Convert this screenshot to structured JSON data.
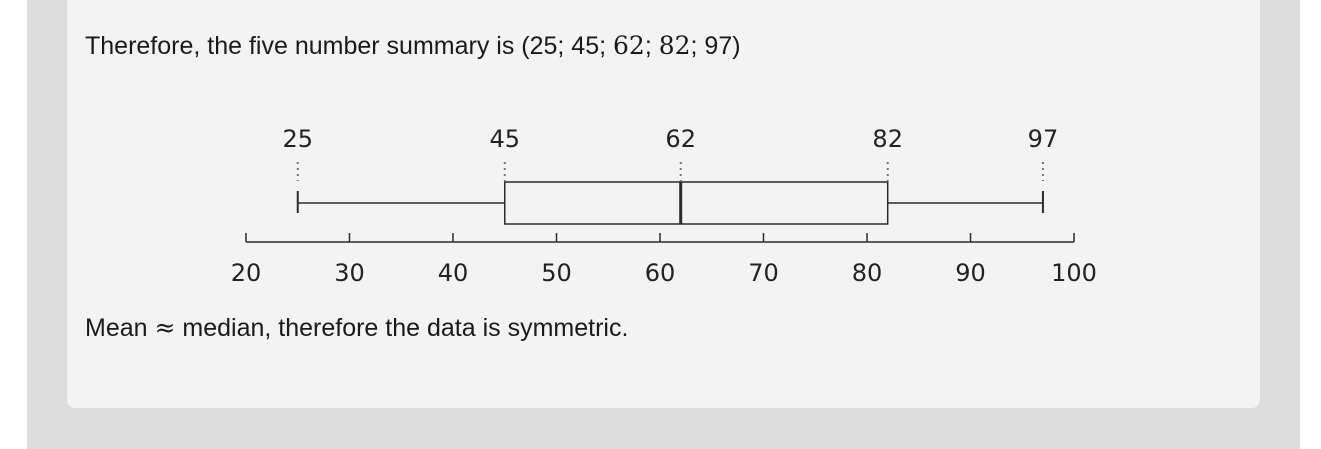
{
  "text": {
    "summary_prefix": "Therefore, the five number summary is (25; 45; ",
    "summary_q2": "62",
    "summary_sep": "; ",
    "summary_q3": "82",
    "summary_suffix": "; 97)",
    "mean_prefix": "Mean ",
    "approx_symbol": "≈",
    "mean_suffix": " median, therefore the data is symmetric."
  },
  "chart_data": {
    "type": "boxplot",
    "min": 25,
    "q1": 45,
    "median": 62,
    "q3": 82,
    "max": 97,
    "value_labels": [
      "25",
      "45",
      "62",
      "82",
      "97"
    ],
    "xlim": [
      20,
      100
    ],
    "xticks": [
      20,
      30,
      40,
      50,
      60,
      70,
      80,
      90,
      100
    ],
    "colors": {
      "stroke": "#2b2b2b",
      "dotted": "#777777"
    }
  }
}
